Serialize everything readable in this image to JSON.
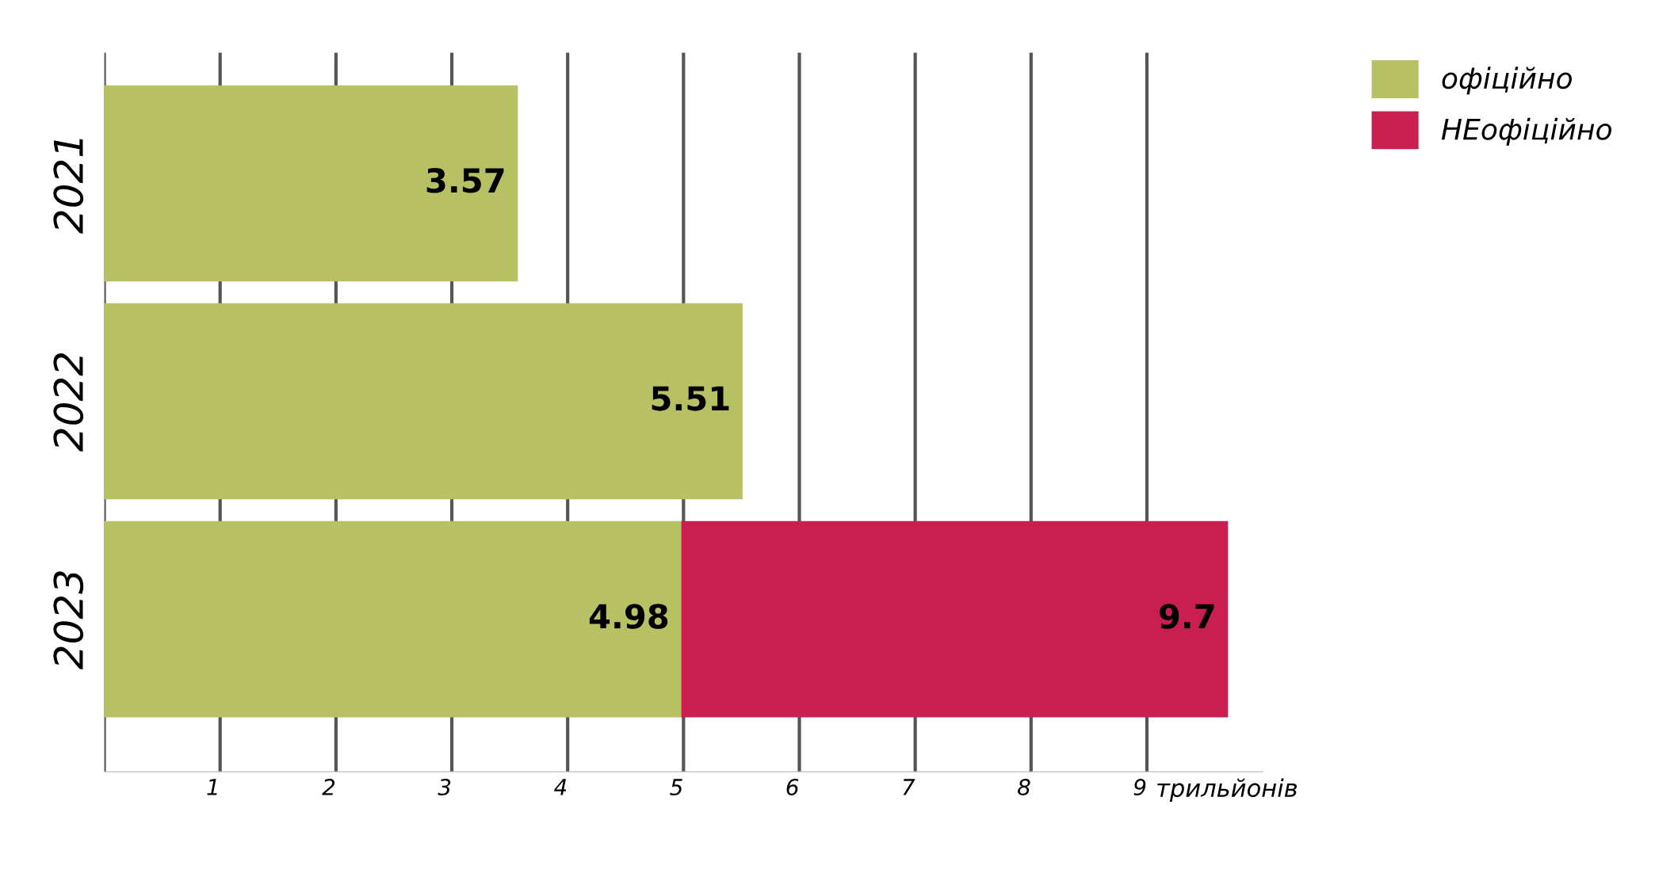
{
  "chart_data": {
    "type": "bar",
    "orientation": "horizontal",
    "stacked": true,
    "categories": [
      "2021",
      "2022",
      "2023"
    ],
    "series": [
      {
        "name": "офіційно",
        "color": "#b8c064",
        "values": [
          3.57,
          5.51,
          4.98
        ],
        "value_labels": [
          "3.57",
          "5.51",
          "4.98"
        ]
      },
      {
        "name": "НЕофіційно",
        "color": "#c81e50",
        "values": [
          null,
          null,
          4.72
        ],
        "value_labels": [
          null,
          null,
          null
        ]
      }
    ],
    "totals": [
      null,
      null,
      "9.7"
    ],
    "xlabel": "трильйонів",
    "xlim": [
      0,
      10
    ],
    "xticks": [
      {
        "value": 0,
        "label": null
      },
      1,
      2,
      3,
      4,
      5,
      6,
      7,
      8,
      9
    ],
    "grid": "x",
    "legend": "top right"
  }
}
